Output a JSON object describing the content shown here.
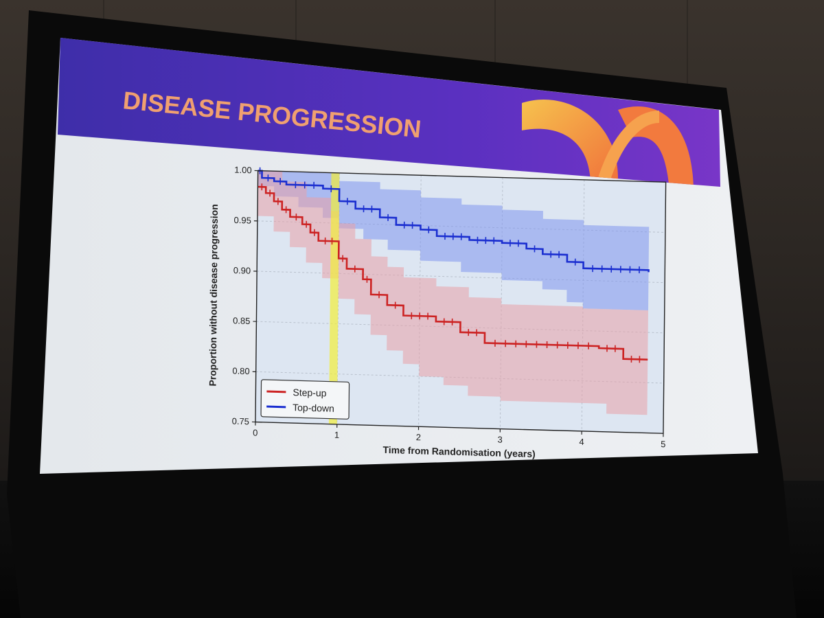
{
  "slide": {
    "title": "DISEASE PROGRESSION"
  },
  "colors": {
    "banner_left": "#4a2fb0",
    "banner_right": "#6a32c8",
    "title": "#f0a070",
    "accent_orange": "#f07a3a",
    "accent_yellow": "#f4b84a",
    "step_up": "#cc2222",
    "top_down": "#1a2ed0",
    "step_up_band": "#e8a0a8",
    "top_down_band": "#7f95ee",
    "highlight": "#f2ee3a"
  },
  "chart_data": {
    "type": "line",
    "xlabel": "Time from Randomisation (years)",
    "ylabel": "Proportion without disease progression",
    "xlim": [
      0,
      5
    ],
    "ylim": [
      0.75,
      1.0
    ],
    "xticks": [
      "0",
      "1",
      "2",
      "3",
      "4",
      "5"
    ],
    "yticks": [
      "0.75",
      "0.80",
      "0.85",
      "0.90",
      "0.95",
      "1.00"
    ],
    "grid": true,
    "legend": "bottom-left",
    "highlight_band_x": [
      0.9,
      1.0
    ],
    "series": [
      {
        "name": "Top-down",
        "key": "top_down",
        "steps": [
          [
            0,
            1.0
          ],
          [
            0.05,
            0.993
          ],
          [
            0.2,
            0.99
          ],
          [
            0.35,
            0.987
          ],
          [
            0.8,
            0.984
          ],
          [
            1.0,
            0.972
          ],
          [
            1.2,
            0.965
          ],
          [
            1.5,
            0.957
          ],
          [
            1.7,
            0.95
          ],
          [
            2.0,
            0.946
          ],
          [
            2.2,
            0.94
          ],
          [
            2.6,
            0.937
          ],
          [
            3.0,
            0.935
          ],
          [
            3.3,
            0.93
          ],
          [
            3.5,
            0.925
          ],
          [
            3.8,
            0.918
          ],
          [
            4.0,
            0.912
          ],
          [
            4.8,
            0.91
          ]
        ],
        "lower": [
          [
            0,
            0.985
          ],
          [
            0.2,
            0.975
          ],
          [
            0.5,
            0.965
          ],
          [
            0.8,
            0.955
          ],
          [
            1.0,
            0.945
          ],
          [
            1.3,
            0.935
          ],
          [
            1.6,
            0.925
          ],
          [
            2.0,
            0.915
          ],
          [
            2.5,
            0.905
          ],
          [
            3.0,
            0.898
          ],
          [
            3.5,
            0.89
          ],
          [
            3.8,
            0.878
          ],
          [
            4.0,
            0.872
          ],
          [
            4.8,
            0.868
          ]
        ],
        "upper": [
          [
            0,
            1.0
          ],
          [
            0.8,
            1.0
          ],
          [
            1.0,
            0.992
          ],
          [
            1.5,
            0.985
          ],
          [
            2.0,
            0.978
          ],
          [
            2.5,
            0.972
          ],
          [
            3.0,
            0.968
          ],
          [
            3.5,
            0.96
          ],
          [
            4.0,
            0.955
          ],
          [
            4.8,
            0.952
          ]
        ]
      },
      {
        "name": "Step-up",
        "key": "step_up",
        "steps": [
          [
            0,
            0.984
          ],
          [
            0.1,
            0.978
          ],
          [
            0.2,
            0.97
          ],
          [
            0.3,
            0.962
          ],
          [
            0.4,
            0.955
          ],
          [
            0.55,
            0.948
          ],
          [
            0.65,
            0.94
          ],
          [
            0.75,
            0.932
          ],
          [
            1.0,
            0.915
          ],
          [
            1.1,
            0.905
          ],
          [
            1.3,
            0.895
          ],
          [
            1.4,
            0.88
          ],
          [
            1.6,
            0.87
          ],
          [
            1.8,
            0.86
          ],
          [
            2.2,
            0.855
          ],
          [
            2.5,
            0.845
          ],
          [
            2.8,
            0.835
          ],
          [
            4.2,
            0.833
          ],
          [
            4.5,
            0.823
          ],
          [
            4.8,
            0.823
          ]
        ],
        "lower": [
          [
            0,
            0.955
          ],
          [
            0.2,
            0.94
          ],
          [
            0.4,
            0.925
          ],
          [
            0.6,
            0.91
          ],
          [
            0.8,
            0.895
          ],
          [
            1.0,
            0.875
          ],
          [
            1.2,
            0.86
          ],
          [
            1.4,
            0.84
          ],
          [
            1.6,
            0.825
          ],
          [
            1.8,
            0.812
          ],
          [
            2.0,
            0.8
          ],
          [
            2.3,
            0.792
          ],
          [
            2.6,
            0.782
          ],
          [
            3.0,
            0.778
          ],
          [
            4.0,
            0.778
          ],
          [
            4.3,
            0.768
          ],
          [
            4.8,
            0.768
          ]
        ],
        "upper": [
          [
            0,
            1.0
          ],
          [
            0.3,
            0.99
          ],
          [
            0.6,
            0.975
          ],
          [
            0.9,
            0.962
          ],
          [
            1.0,
            0.95
          ],
          [
            1.2,
            0.935
          ],
          [
            1.4,
            0.918
          ],
          [
            1.6,
            0.908
          ],
          [
            1.8,
            0.898
          ],
          [
            2.2,
            0.89
          ],
          [
            2.6,
            0.88
          ],
          [
            3.0,
            0.874
          ],
          [
            4.0,
            0.872
          ],
          [
            4.8,
            0.87
          ]
        ]
      }
    ]
  }
}
